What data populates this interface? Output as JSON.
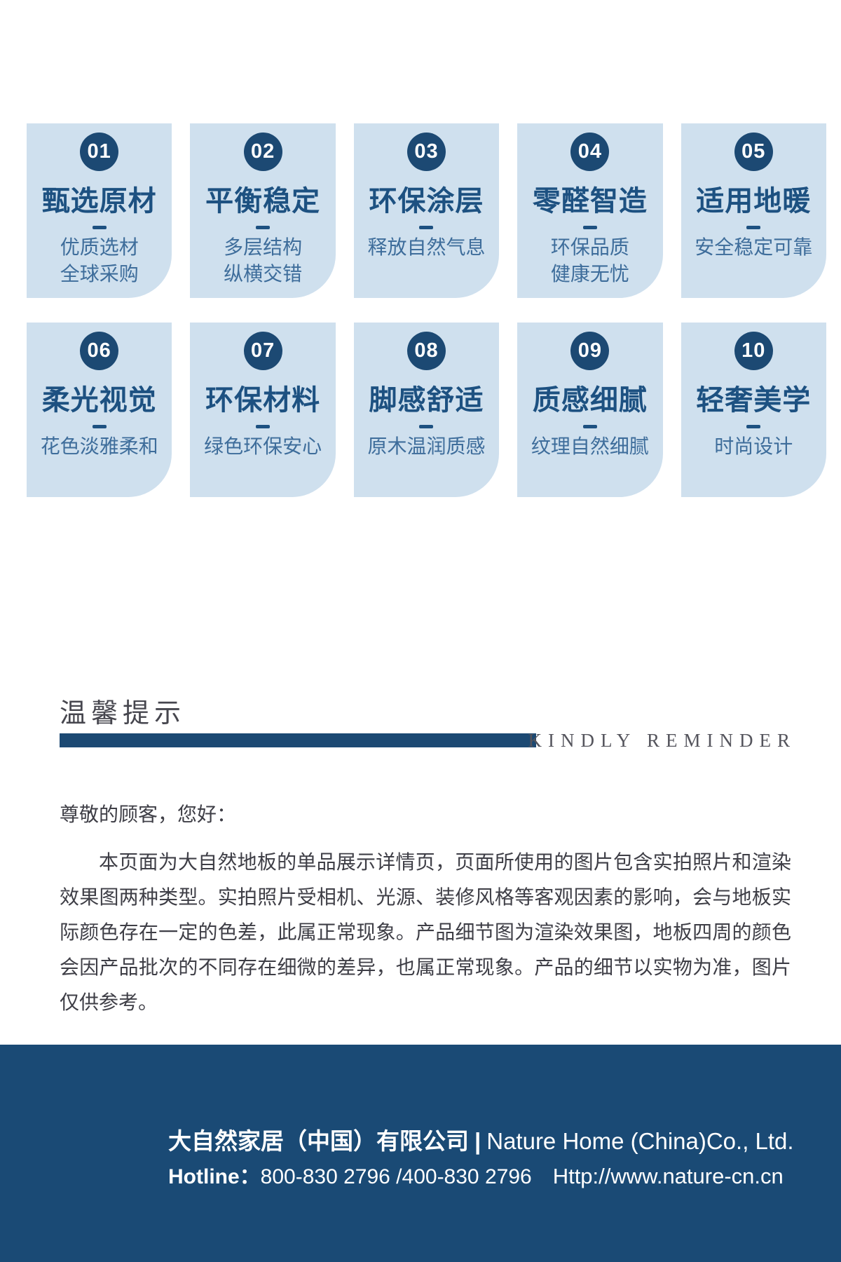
{
  "colors": {
    "card_bg": "#cfe0ee",
    "navy": "#1c4973",
    "title_blue": "#1d5181",
    "subtitle_blue": "#3e6d9b",
    "footer_bg": "#1a4a75",
    "text_gray": "#3e3e46"
  },
  "features": {
    "cards": [
      {
        "num": "01",
        "title": "甄选原材",
        "sub": [
          "优质选材",
          "全球采购"
        ]
      },
      {
        "num": "02",
        "title": "平衡稳定",
        "sub": [
          "多层结构",
          "纵横交错"
        ]
      },
      {
        "num": "03",
        "title": "环保涂层",
        "sub": [
          "释放自然气息"
        ]
      },
      {
        "num": "04",
        "title": "零醛智造",
        "sub": [
          "环保品质",
          "健康无忧"
        ]
      },
      {
        "num": "05",
        "title": "适用地暖",
        "sub": [
          "安全稳定可靠"
        ]
      },
      {
        "num": "06",
        "title": "柔光视觉",
        "sub": [
          "花色淡雅柔和"
        ]
      },
      {
        "num": "07",
        "title": "环保材料",
        "sub": [
          "绿色环保安心"
        ]
      },
      {
        "num": "08",
        "title": "脚感舒适",
        "sub": [
          "原木温润质感"
        ]
      },
      {
        "num": "09",
        "title": "质感细腻",
        "sub": [
          "纹理自然细腻"
        ]
      },
      {
        "num": "10",
        "title": "轻奢美学",
        "sub": [
          "时尚设计"
        ]
      }
    ]
  },
  "reminder": {
    "title": "温馨提示",
    "title_en": "KINDLY REMINDER",
    "greeting": "尊敬的顾客，您好：",
    "paragraph": "本页面为大自然地板的单品展示详情页，页面所使用的图片包含实拍照片和渲染效果图两种类型。实拍照片受相机、光源、装修风格等客观因素的影响，会与地板实际颜色存在一定的色差，此属正常现象。产品细节图为渲染效果图，地板四周的颜色会因产品批次的不同存在细微的差异，也属正常现象。产品的细节以实物为准，图片仅供参考。"
  },
  "footer": {
    "company_cn": "大自然家居（中国）有限公司",
    "separator": "|",
    "company_en": "Nature Home (China)Co., Ltd.",
    "hotline_label": "Hotline：",
    "hotline_numbers": "800-830 2796 /400-830 2796",
    "website": "Http://www.nature-cn.cn"
  }
}
